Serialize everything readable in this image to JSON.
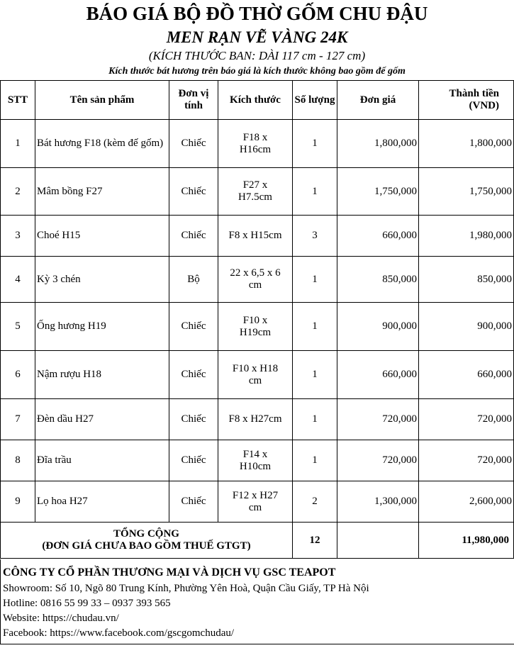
{
  "title": "BÁO GIÁ BỘ ĐỒ THỜ GỐM CHU ĐẬU",
  "subtitle": "MEN RẠN VẼ VÀNG 24K",
  "size_note": "(KÍCH THƯỚC BAN: DÀI 117 cm - 127 cm)",
  "note": "Kích thước bát hương trên báo giá là kích thước không bao gồm đế gốm",
  "headers": [
    "STT",
    "Tên sản phẩm",
    "Đơn vị tính",
    "Kích thước",
    "Số lượng",
    "Đơn giá",
    "Thành tiền (VND)"
  ],
  "rows": [
    [
      "1",
      "Bát hương F18 (kèm đế gốm)",
      "Chiếc",
      "F18 x H16cm",
      "1",
      "1,800,000",
      "1,800,000"
    ],
    [
      "2",
      "Mâm bồng F27",
      "Chiếc",
      "F27 x H7.5cm",
      "1",
      "1,750,000",
      "1,750,000"
    ],
    [
      "3",
      "Choé H15",
      "Chiếc",
      "F8 x H15cm",
      "3",
      "660,000",
      "1,980,000"
    ],
    [
      "4",
      "Kỳ 3 chén",
      "Bộ",
      "22 x 6,5 x 6 cm",
      "1",
      "850,000",
      "850,000"
    ],
    [
      "5",
      "Ống hương H19",
      "Chiếc",
      "F10 x H19cm",
      "1",
      "900,000",
      "900,000"
    ],
    [
      "6",
      "Nậm rượu H18",
      "Chiếc",
      "F10 x H18 cm",
      "1",
      "660,000",
      "660,000"
    ],
    [
      "7",
      "Đèn dầu H27",
      "Chiếc",
      "F8 x H27cm",
      "1",
      "720,000",
      "720,000"
    ],
    [
      "8",
      "Đĩa trầu",
      "Chiếc",
      "F14 x H10cm",
      "1",
      "720,000",
      "720,000"
    ],
    [
      "9",
      "Lọ hoa H27",
      "Chiếc",
      "F12 x H27 cm",
      "2",
      "1,300,000",
      "2,600,000"
    ]
  ],
  "total": {
    "label1": "TỔNG CỘNG",
    "label2": "(ĐƠN GIÁ CHƯA BAO GỒM THUẾ GTGT)",
    "qty": "12",
    "amount": "11,980,000"
  },
  "footer": {
    "company": "CÔNG TY CỔ PHẦN THƯƠNG MẠI VÀ DỊCH VỤ GSC TEAPOT",
    "showroom": "Showroom: Số 10, Ngõ 80 Trung Kính, Phường Yên Hoà, Quận Cầu Giấy, TP Hà Nội",
    "hotline": "Hotline: 0816 55 99 33 – 0937 393 565",
    "website": "Website: https://chudau.vn/",
    "facebook": "Facebook: https://www.facebook.com/gscgomchudau/"
  }
}
